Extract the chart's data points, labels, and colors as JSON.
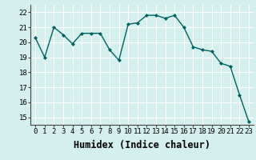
{
  "x": [
    0,
    1,
    2,
    3,
    4,
    5,
    6,
    7,
    8,
    9,
    10,
    11,
    12,
    13,
    14,
    15,
    16,
    17,
    18,
    19,
    20,
    21,
    22,
    23
  ],
  "y": [
    20.3,
    19.0,
    21.0,
    20.5,
    19.9,
    20.6,
    20.6,
    20.6,
    19.5,
    18.8,
    21.2,
    21.3,
    21.8,
    21.8,
    21.6,
    21.8,
    21.0,
    19.7,
    19.5,
    19.4,
    18.6,
    18.4,
    16.5,
    14.7
  ],
  "line_color": "#006060",
  "marker": "D",
  "marker_size": 2.0,
  "xlabel": "Humidex (Indice chaleur)",
  "ylim": [
    14.5,
    22.5
  ],
  "yticks": [
    15,
    16,
    17,
    18,
    19,
    20,
    21,
    22
  ],
  "xticks": [
    0,
    1,
    2,
    3,
    4,
    5,
    6,
    7,
    8,
    9,
    10,
    11,
    12,
    13,
    14,
    15,
    16,
    17,
    18,
    19,
    20,
    21,
    22,
    23
  ],
  "background_color": "#d4f0ee",
  "grid_color": "#ffffff",
  "tick_label_fontsize": 6.5,
  "xlabel_fontsize": 8.5,
  "linewidth": 1.0
}
